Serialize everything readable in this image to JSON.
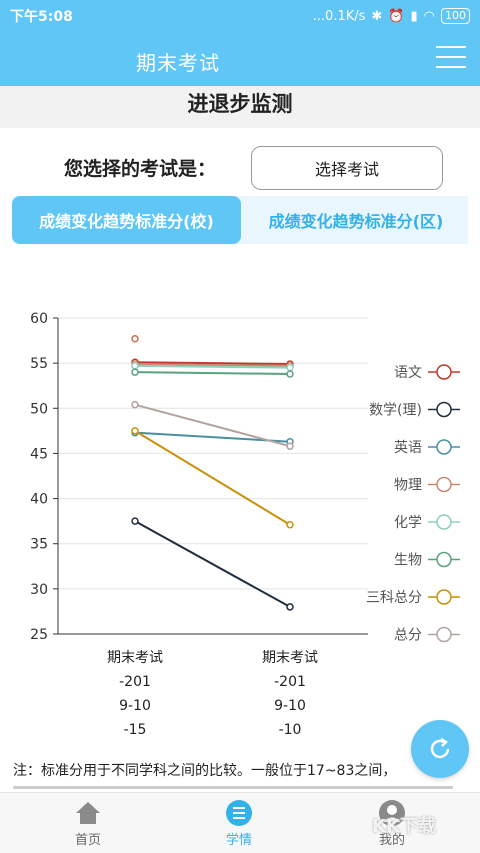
{
  "status_bar": {
    "time": "下午5:08",
    "indicators": "...0.1K/s",
    "battery": "100"
  },
  "header": {
    "title": "期末考试"
  },
  "section": {
    "title": "进退步监测"
  },
  "exam_selector": {
    "label": "您选择的考试是：",
    "button_label": "选择考试"
  },
  "tabs": [
    {
      "label": "成绩变化趋势标准分(校)",
      "active": true
    },
    {
      "label": "成绩变化趋势标准分(区)",
      "active": false
    }
  ],
  "chart_data": {
    "type": "line",
    "ylim": [
      25,
      60
    ],
    "yticks": [
      60,
      55,
      50,
      45,
      40,
      35,
      30,
      25
    ],
    "x": [
      [
        "期末考试",
        "-201",
        "9-10",
        "-15"
      ],
      [
        "期末考试",
        "-201",
        "9-10",
        "-10"
      ]
    ],
    "outlier": {
      "x_index": 0,
      "y": 57.7,
      "color": "#c9704f"
    },
    "series": [
      {
        "name": "语文",
        "color": "#c0392b",
        "values": [
          55.1,
          54.9
        ]
      },
      {
        "name": "数学(理)",
        "color": "#1f2d3d",
        "values": [
          37.5,
          28.0
        ]
      },
      {
        "name": "英语",
        "color": "#4a8fa0",
        "values": [
          47.3,
          46.3
        ]
      },
      {
        "name": "物理",
        "color": "#c98a75",
        "values": [
          54.9,
          54.7
        ]
      },
      {
        "name": "化学",
        "color": "#8fd0bd",
        "values": [
          54.7,
          54.5
        ]
      },
      {
        "name": "生物",
        "color": "#5aa27c",
        "values": [
          54.0,
          53.8
        ]
      },
      {
        "name": "三科总分",
        "color": "#c9900b",
        "values": [
          47.5,
          37.1
        ]
      },
      {
        "name": "总分",
        "color": "#b3a3a0",
        "values": [
          50.4,
          45.8
        ]
      }
    ]
  },
  "note": {
    "text": "注：标准分用于不同学科之间的比较。一般位于17~83之间，"
  },
  "bottom_nav": [
    {
      "label": "首页",
      "icon": "home-icon"
    },
    {
      "label": "学情",
      "icon": "study-list-icon"
    },
    {
      "label": "我的",
      "icon": "profile-icon"
    }
  ],
  "watermark": "KK下载"
}
